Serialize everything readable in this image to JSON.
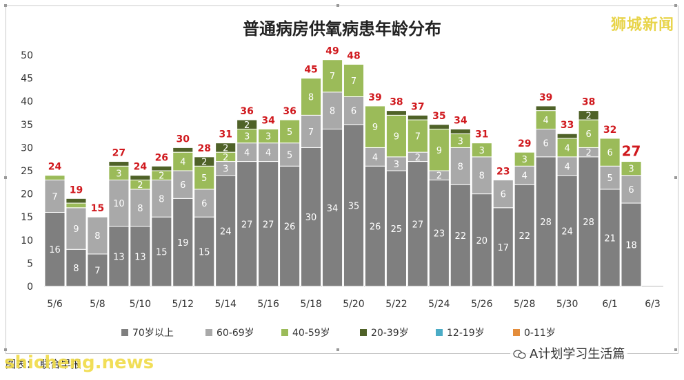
{
  "title": "普通病房供氧病患年龄分布",
  "watermark_top": "狮城新闻",
  "watermark_bottom": "shicheng.news",
  "caption_left": "图表：  联合早报",
  "wechat_attribution": "A计划学习生活篇",
  "colors": {
    "70+": "#7f7f7f",
    "60-69": "#a9a9a9",
    "40-59": "#9bbb59",
    "20-39": "#4f6228",
    "12-19": "#4bacc6",
    "0-11": "#e48d3b",
    "total_label": "#d0191e"
  },
  "chart_data": {
    "type": "bar",
    "stacked": true,
    "title": "普通病房供氧病患年龄分布",
    "categories": [
      "5/6",
      "5/7",
      "5/8",
      "5/9",
      "5/10",
      "5/11",
      "5/12",
      "5/13",
      "5/14",
      "5/15",
      "5/16",
      "5/17",
      "5/18",
      "5/19",
      "5/20",
      "5/21",
      "5/22",
      "5/23",
      "5/24",
      "5/25",
      "5/26",
      "5/27",
      "5/28",
      "5/29",
      "5/30",
      "5/31",
      "6/1",
      "6/2",
      "6/3"
    ],
    "x_tick_labels": [
      "5/6",
      "5/8",
      "5/10",
      "5/12",
      "5/14",
      "5/16",
      "5/18",
      "5/20",
      "5/22",
      "5/24",
      "5/26",
      "5/28",
      "5/30",
      "6/1",
      "6/3"
    ],
    "ylim": [
      0,
      50
    ],
    "y_ticks": [
      0,
      5,
      10,
      15,
      20,
      25,
      30,
      35,
      40,
      45,
      50
    ],
    "series": [
      {
        "name": "70岁以上",
        "values": [
          16,
          8,
          7,
          13,
          13,
          15,
          19,
          15,
          24,
          27,
          27,
          26,
          30,
          34,
          35,
          26,
          25,
          27,
          23,
          22,
          20,
          17,
          22,
          28,
          24,
          28,
          21,
          18,
          null
        ]
      },
      {
        "name": "60-69岁",
        "values": [
          7,
          9,
          8,
          10,
          8,
          8,
          6,
          6,
          3,
          4,
          4,
          5,
          7,
          8,
          6,
          4,
          3,
          2,
          2,
          8,
          8,
          6,
          4,
          6,
          4,
          2,
          5,
          6,
          null
        ]
      },
      {
        "name": "40-59岁",
        "values": [
          1,
          1,
          0,
          3,
          2,
          2,
          4,
          5,
          2,
          3,
          3,
          5,
          8,
          7,
          7,
          9,
          9,
          7,
          9,
          3,
          3,
          0,
          3,
          4,
          4,
          6,
          6,
          3,
          null
        ]
      },
      {
        "name": "20-39岁",
        "values": [
          0,
          1,
          0,
          1,
          1,
          1,
          1,
          2,
          2,
          2,
          0,
          0,
          0,
          0,
          0,
          0,
          1,
          1,
          1,
          1,
          0,
          0,
          0,
          1,
          1,
          2,
          0,
          0,
          null
        ]
      },
      {
        "name": "12-19岁",
        "values": [
          0,
          0,
          0,
          0,
          0,
          0,
          0,
          0,
          0,
          0,
          0,
          0,
          0,
          0,
          0,
          0,
          0,
          0,
          0,
          0,
          0,
          0,
          0,
          0,
          0,
          0,
          0,
          0,
          null
        ]
      },
      {
        "name": "0-11岁",
        "values": [
          0,
          0,
          0,
          0,
          0,
          0,
          0,
          0,
          0,
          0,
          0,
          0,
          0,
          0,
          0,
          0,
          0,
          0,
          0,
          0,
          0,
          0,
          0,
          0,
          0,
          0,
          0,
          0,
          null
        ]
      }
    ],
    "segment_labels": [
      [
        "16",
        "7",
        "",
        ""
      ],
      [
        "8",
        "9",
        "",
        ""
      ],
      [
        "7",
        "8",
        "",
        ""
      ],
      [
        "13",
        "10",
        "3",
        ""
      ],
      [
        "13",
        "8",
        "2",
        ""
      ],
      [
        "15",
        "8",
        "2",
        ""
      ],
      [
        "19",
        "6",
        "4",
        ""
      ],
      [
        "15",
        "6",
        "5",
        "2"
      ],
      [
        "24",
        "3",
        "2",
        "2"
      ],
      [
        "27",
        "4",
        "3",
        "2"
      ],
      [
        "27",
        "4",
        "3",
        ""
      ],
      [
        "26",
        "5",
        "5",
        ""
      ],
      [
        "30",
        "7",
        "8",
        ""
      ],
      [
        "34",
        "8",
        "7",
        ""
      ],
      [
        "35",
        "6",
        "7",
        ""
      ],
      [
        "26",
        "4",
        "9",
        ""
      ],
      [
        "25",
        "3",
        "9",
        ""
      ],
      [
        "27",
        "2",
        "7",
        ""
      ],
      [
        "23",
        "2",
        "9",
        ""
      ],
      [
        "22",
        "8",
        "3",
        ""
      ],
      [
        "20",
        "8",
        "3",
        ""
      ],
      [
        "17",
        "6",
        "",
        ""
      ],
      [
        "22",
        "4",
        "3",
        ""
      ],
      [
        "28",
        "6",
        "4",
        ""
      ],
      [
        "24",
        "4",
        "4",
        ""
      ],
      [
        "28",
        "2",
        "6",
        "2"
      ],
      [
        "21",
        "5",
        "6",
        ""
      ],
      [
        "18",
        "6",
        "3",
        ""
      ],
      [
        "",
        "",
        "",
        ""
      ]
    ],
    "totals": [
      "24",
      "19",
      "15",
      "27",
      "24",
      "26",
      "30",
      "28",
      "31",
      "36",
      "34",
      "36",
      "45",
      "49",
      "48",
      "39",
      "38",
      "37",
      "35",
      "34",
      "31",
      "23",
      "29",
      "39",
      "33",
      "38",
      "32",
      "27",
      ""
    ],
    "legend": [
      "70岁以上",
      "60-69岁",
      "40-59岁",
      "20-39岁",
      "12-19岁",
      "0-11岁"
    ],
    "legend_position": "bottom",
    "grid": false
  }
}
